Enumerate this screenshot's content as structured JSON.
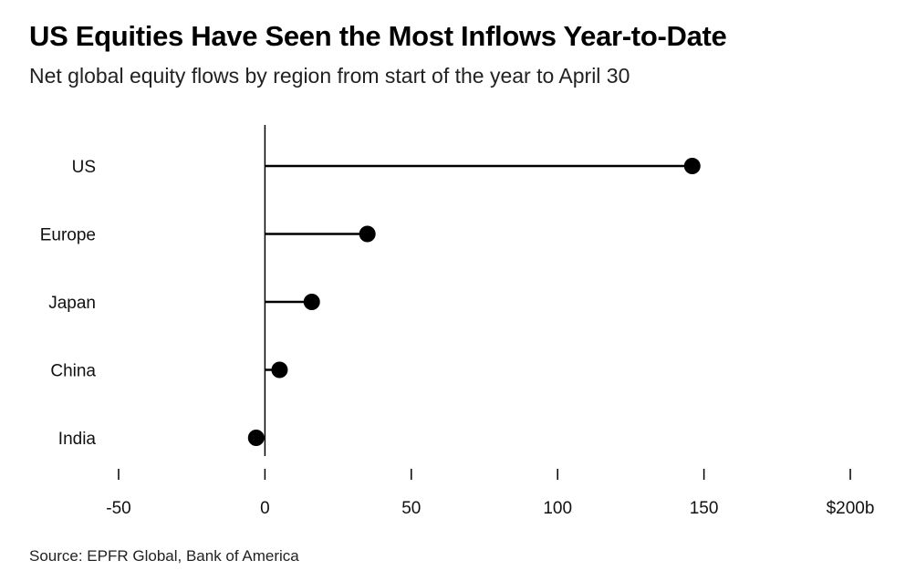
{
  "title": "US Equities Have Seen the Most Inflows Year-to-Date",
  "subtitle": "Net global equity flows by region from start of the year to April 30",
  "source": "Source: EPFR Global, Bank of America",
  "chart_data": {
    "type": "lollipop",
    "orientation": "horizontal",
    "categories": [
      "US",
      "Europe",
      "Japan",
      "China",
      "India"
    ],
    "values": [
      146,
      35,
      16,
      5,
      -3
    ],
    "xlim": [
      -50,
      200
    ],
    "xticks": [
      -50,
      0,
      50,
      100,
      150,
      200
    ],
    "xtick_labels": [
      "-50",
      "0",
      "50",
      "100",
      "150",
      "$200b"
    ],
    "grid": false,
    "legend": "none",
    "colors": {
      "mark": "#000000",
      "axis": "#000000"
    }
  }
}
